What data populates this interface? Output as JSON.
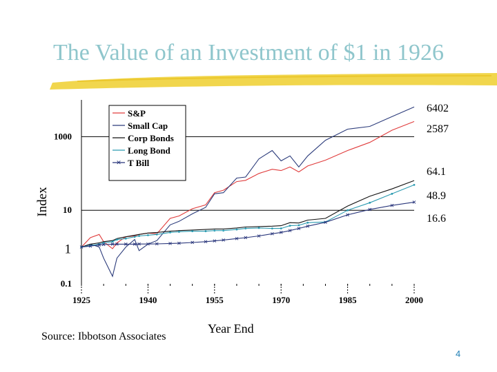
{
  "slide": {
    "title": "The Value of an Investment of $1 in 1926",
    "source": "Source: Ibbotson Associates",
    "page_number": "4"
  },
  "colors": {
    "title": "#8fc6cc",
    "underline": "#f0d23a"
  },
  "chart_data": {
    "type": "line",
    "xlabel": "Year End",
    "ylabel": "Index",
    "yscale": "log",
    "xlim": [
      1925,
      2000
    ],
    "ylim": [
      0.1,
      10000
    ],
    "x_ticks": [
      "1925",
      "1940",
      "1955",
      "1970",
      "1985",
      "2000"
    ],
    "y_ticks": [
      "0.1",
      "1",
      "10",
      "1000"
    ],
    "gridlines_y": [
      10,
      1000
    ],
    "legend_placement": "top-left",
    "end_labels": [
      "6402",
      "2587",
      "64.1",
      "48.9",
      "16.6"
    ],
    "x": [
      1925,
      1927,
      1929,
      1930,
      1932,
      1933,
      1935,
      1937,
      1938,
      1940,
      1942,
      1945,
      1947,
      1950,
      1953,
      1955,
      1957,
      1960,
      1962,
      1965,
      1968,
      1970,
      1972,
      1974,
      1976,
      1980,
      1985,
      1990,
      1995,
      2000
    ],
    "series": [
      {
        "name": "S&P",
        "color": "#e03a3a",
        "marker": "none",
        "values": [
          1,
          1.8,
          2.2,
          1.4,
          0.9,
          1.3,
          1.9,
          2.0,
          2.2,
          2.4,
          2.3,
          6,
          7,
          11,
          14,
          30,
          35,
          60,
          65,
          100,
          130,
          120,
          150,
          110,
          160,
          230,
          420,
          700,
          1500,
          2587
        ]
      },
      {
        "name": "Small Cap",
        "color": "#2a3a7a",
        "marker": "none",
        "values": [
          1,
          1.2,
          1.0,
          0.5,
          0.16,
          0.5,
          1.0,
          1.6,
          0.8,
          1.2,
          1.5,
          4,
          5,
          8,
          12,
          28,
          30,
          75,
          80,
          250,
          420,
          220,
          300,
          150,
          300,
          800,
          1600,
          1900,
          3500,
          6402
        ]
      },
      {
        "name": "Corp Bonds",
        "color": "#111111",
        "marker": "none",
        "values": [
          1,
          1.2,
          1.3,
          1.4,
          1.5,
          1.7,
          1.9,
          2.1,
          2.2,
          2.4,
          2.5,
          2.7,
          2.8,
          2.9,
          3.0,
          3.1,
          3.1,
          3.3,
          3.5,
          3.6,
          3.7,
          3.8,
          4.6,
          4.5,
          5.4,
          6.0,
          13,
          24,
          38,
          64.1
        ]
      },
      {
        "name": "Long Bond",
        "color": "#2a9ab0",
        "marker": "dot",
        "values": [
          1,
          1.1,
          1.2,
          1.3,
          1.4,
          1.6,
          1.7,
          1.9,
          2.0,
          2.1,
          2.2,
          2.5,
          2.6,
          2.7,
          2.7,
          2.8,
          2.8,
          3.0,
          3.2,
          3.3,
          3.2,
          3.2,
          3.8,
          3.9,
          4.6,
          4.8,
          10,
          16,
          28,
          48.9
        ]
      },
      {
        "name": "T Bill",
        "color": "#27347a",
        "marker": "x",
        "values": [
          1,
          1.06,
          1.14,
          1.17,
          1.2,
          1.2,
          1.2,
          1.2,
          1.21,
          1.21,
          1.22,
          1.25,
          1.27,
          1.33,
          1.4,
          1.47,
          1.55,
          1.7,
          1.8,
          2.0,
          2.3,
          2.5,
          2.8,
          3.2,
          3.7,
          4.7,
          7.5,
          10.5,
          13.5,
          16.6
        ]
      }
    ]
  }
}
